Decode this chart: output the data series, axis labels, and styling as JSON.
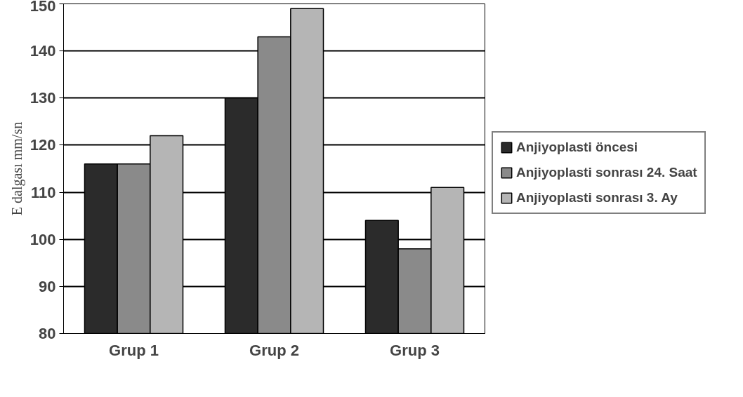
{
  "chart_data": {
    "type": "bar",
    "ylabel": "E dalgası mm/sn",
    "categories": [
      "Grup 1",
      "Grup 2",
      "Grup 3"
    ],
    "series": [
      {
        "name": "Anjiyoplasti öncesi",
        "color": "#2b2b2b",
        "values": [
          116,
          130,
          104
        ]
      },
      {
        "name": "Anjiyoplasti sonrası 24. Saat",
        "color": "#8a8a8a",
        "values": [
          116,
          143,
          98
        ]
      },
      {
        "name": "Anjiyoplasti sonrası 3. Ay",
        "color": "#b5b5b5",
        "values": [
          122,
          149,
          111
        ]
      }
    ],
    "ylim": [
      80,
      150
    ],
    "yticks": [
      80,
      90,
      100,
      110,
      120,
      130,
      140,
      150
    ],
    "grid": "y",
    "legend": "right"
  }
}
